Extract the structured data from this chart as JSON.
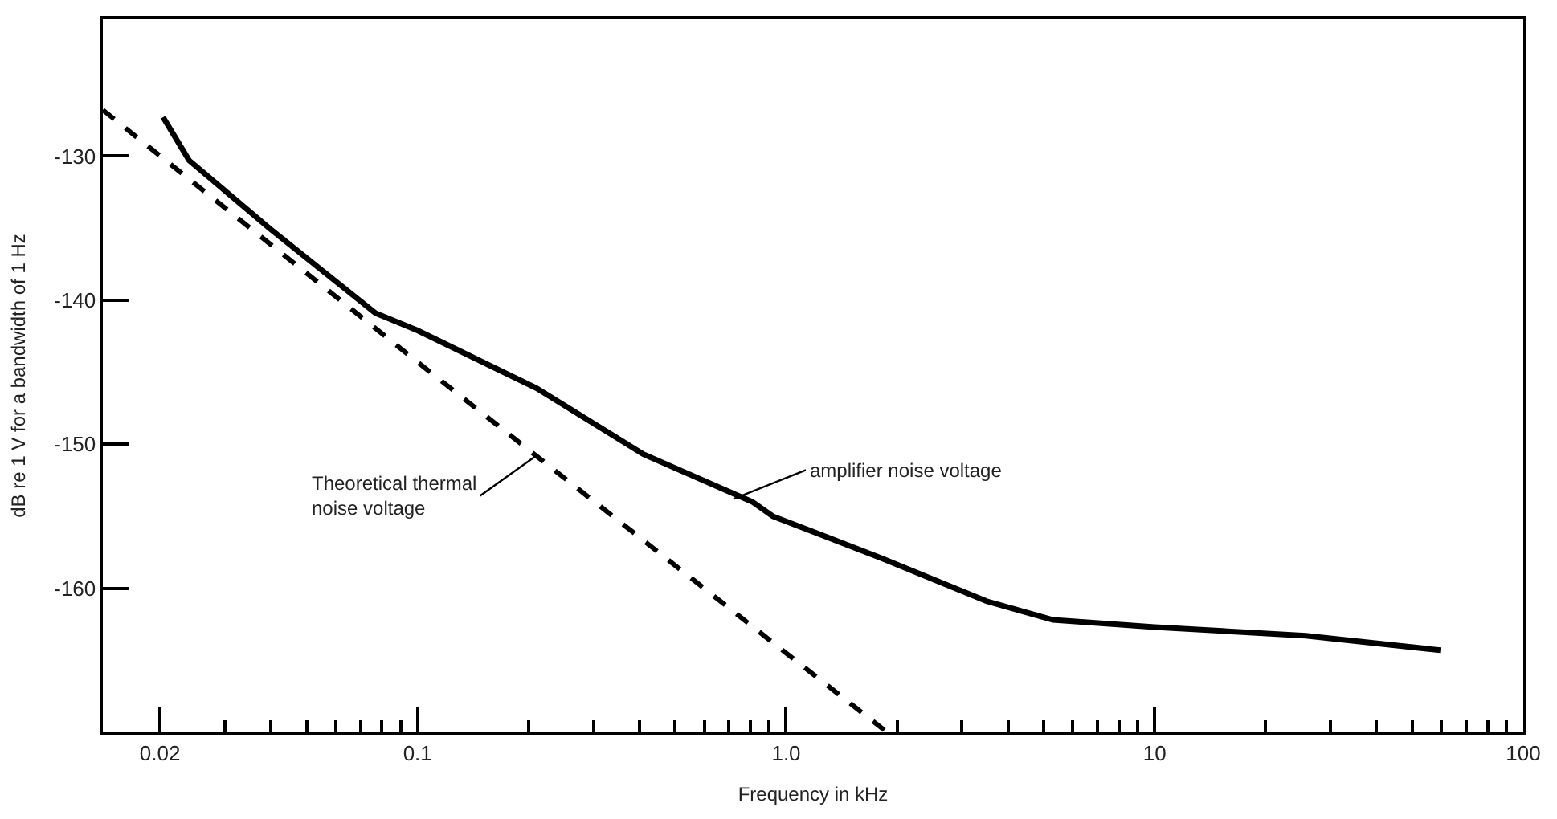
{
  "chart_data": {
    "type": "line",
    "xlabel": "Frequency in kHz",
    "ylabel": "dB re 1 V for a bandwidth of 1 Hz",
    "log": "x",
    "marker": "none",
    "xlim": [
      0.014,
      100
    ],
    "ylim": [
      -170,
      -120.5
    ],
    "xticks": [
      {
        "value": 0.02,
        "label": "0.02"
      },
      {
        "value": 0.03,
        "label": null
      },
      {
        "value": 0.04,
        "label": null
      },
      {
        "value": 0.05,
        "label": null
      },
      {
        "value": 0.06,
        "label": null
      },
      {
        "value": 0.07,
        "label": null
      },
      {
        "value": 0.08,
        "label": null
      },
      {
        "value": 0.09,
        "label": null
      },
      {
        "value": 0.1,
        "label": "0.1"
      },
      {
        "value": 0.2,
        "label": null
      },
      {
        "value": 0.3,
        "label": null
      },
      {
        "value": 0.4,
        "label": null
      },
      {
        "value": 0.5,
        "label": null
      },
      {
        "value": 0.6,
        "label": null
      },
      {
        "value": 0.7,
        "label": null
      },
      {
        "value": 0.8,
        "label": null
      },
      {
        "value": 0.9,
        "label": null
      },
      {
        "value": 1,
        "label": "1.0"
      },
      {
        "value": 2,
        "label": null
      },
      {
        "value": 3,
        "label": null
      },
      {
        "value": 4,
        "label": null
      },
      {
        "value": 5,
        "label": null
      },
      {
        "value": 6,
        "label": null
      },
      {
        "value": 7,
        "label": null
      },
      {
        "value": 8,
        "label": null
      },
      {
        "value": 9,
        "label": null
      },
      {
        "value": 10,
        "label": "10"
      },
      {
        "value": 20,
        "label": null
      },
      {
        "value": 30,
        "label": null
      },
      {
        "value": 40,
        "label": null
      },
      {
        "value": 50,
        "label": null
      },
      {
        "value": 60,
        "label": null
      },
      {
        "value": 70,
        "label": null
      },
      {
        "value": 80,
        "label": null
      },
      {
        "value": 90,
        "label": null
      },
      {
        "value": 100,
        "label": "100"
      }
    ],
    "yticks": [
      -130,
      -140,
      -150,
      -160
    ],
    "series": [
      {
        "color": "#000000",
        "line_style": "solid",
        "x": [
          0.0204,
          0.024,
          0.0396,
          0.0769,
          0.1,
          0.21,
          0.41,
          0.81,
          0.92,
          1.81,
          3.5,
          5.3,
          10,
          25.7,
          59.6
        ],
        "values": [
          -127.3,
          -130.3,
          -135,
          -140.9,
          -142.1,
          -146.1,
          -150.7,
          -154,
          -155,
          -157.9,
          -160.9,
          -162.2,
          -162.7,
          -163.3,
          -164.3
        ]
      },
      {
        "color": "#000000",
        "line_style": "dashed",
        "x": [
          0.014,
          0.1,
          1.0,
          1.88
        ],
        "values": [
          -126.8,
          -144.3,
          -164.5,
          -170
        ]
      }
    ],
    "annotations": [
      {
        "text": "Theoretical thermal\nnoise voltage",
        "x": 0.21,
        "y": -150.8
      },
      {
        "text": "amplifier noise voltage",
        "x": 0.72,
        "y": -153.8
      }
    ]
  }
}
